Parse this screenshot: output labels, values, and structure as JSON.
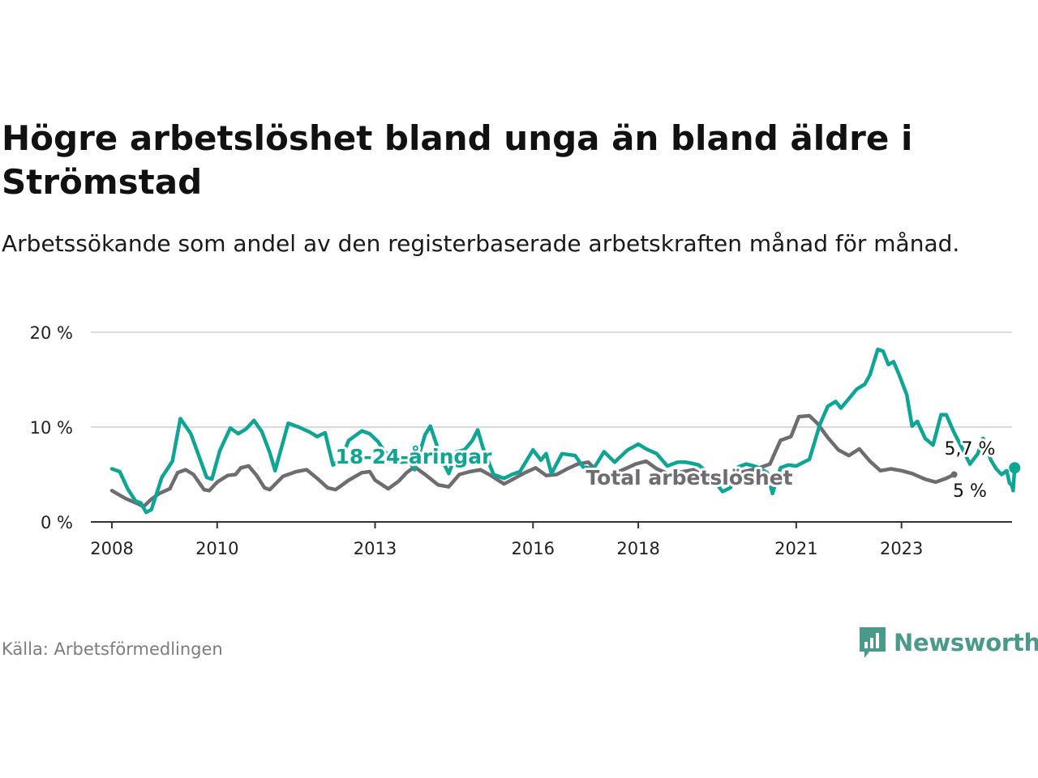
{
  "title": "Högre arbetslöshet bland unga än bland äldre i Strömstad",
  "subtitle": "Arbetssökande som andel av den registerbaserade arbetskraften månad för månad.",
  "source": "Källa: Arbetsförmedlingen",
  "brand": "Newsworthy",
  "colors": {
    "youth": "#0ea595",
    "total": "#6f6b72",
    "grid": "#dcdcdc",
    "axis": "#333333",
    "brand": "#4a9a8c"
  },
  "chart_data": {
    "type": "line",
    "title": "Högre arbetslöshet bland unga än bland äldre i Strömstad",
    "ylim": [
      0,
      20
    ],
    "xlim": [
      2007.6,
      2025.1
    ],
    "y_ticks": [
      {
        "value": 0,
        "label": "0 %"
      },
      {
        "value": 10,
        "label": "10 %"
      },
      {
        "value": 20,
        "label": "20 %"
      }
    ],
    "x_ticks": [
      {
        "value": 2008,
        "label": "2008"
      },
      {
        "value": 2010,
        "label": "2010"
      },
      {
        "value": 2013,
        "label": "2013"
      },
      {
        "value": 2016,
        "label": "2016"
      },
      {
        "value": 2018,
        "label": "2018"
      },
      {
        "value": 2021,
        "label": "2021"
      },
      {
        "value": 2023,
        "label": "2023"
      }
    ],
    "series": [
      {
        "name": "Total arbetslöshet",
        "label": "Total arbetslöshet",
        "end_label": "5 %",
        "points": [
          [
            2008.0,
            3.3
          ],
          [
            2008.25,
            2.5
          ],
          [
            2008.5,
            1.9
          ],
          [
            2008.6,
            1.6
          ],
          [
            2008.75,
            2.4
          ],
          [
            2008.9,
            3.0
          ],
          [
            2009.1,
            3.5
          ],
          [
            2009.25,
            5.2
          ],
          [
            2009.4,
            5.5
          ],
          [
            2009.55,
            5.0
          ],
          [
            2009.75,
            3.4
          ],
          [
            2009.85,
            3.3
          ],
          [
            2010.0,
            4.2
          ],
          [
            2010.2,
            4.9
          ],
          [
            2010.35,
            5.0
          ],
          [
            2010.45,
            5.7
          ],
          [
            2010.6,
            5.9
          ],
          [
            2010.75,
            4.9
          ],
          [
            2010.9,
            3.6
          ],
          [
            2011.0,
            3.4
          ],
          [
            2011.25,
            4.8
          ],
          [
            2011.5,
            5.3
          ],
          [
            2011.7,
            5.5
          ],
          [
            2011.9,
            4.6
          ],
          [
            2012.1,
            3.6
          ],
          [
            2012.25,
            3.4
          ],
          [
            2012.5,
            4.4
          ],
          [
            2012.75,
            5.2
          ],
          [
            2012.9,
            5.3
          ],
          [
            2013.0,
            4.4
          ],
          [
            2013.25,
            3.5
          ],
          [
            2013.45,
            4.3
          ],
          [
            2013.6,
            5.2
          ],
          [
            2013.75,
            5.8
          ],
          [
            2013.95,
            5.0
          ],
          [
            2014.2,
            3.9
          ],
          [
            2014.4,
            3.7
          ],
          [
            2014.6,
            5.0
          ],
          [
            2014.8,
            5.3
          ],
          [
            2015.0,
            5.5
          ],
          [
            2015.2,
            4.9
          ],
          [
            2015.45,
            4.0
          ],
          [
            2015.65,
            4.6
          ],
          [
            2015.85,
            5.2
          ],
          [
            2016.05,
            5.7
          ],
          [
            2016.25,
            4.9
          ],
          [
            2016.45,
            5.0
          ],
          [
            2016.65,
            5.6
          ],
          [
            2016.85,
            6.1
          ],
          [
            2017.05,
            6.3
          ],
          [
            2017.25,
            5.2
          ],
          [
            2017.5,
            5.0
          ],
          [
            2017.75,
            5.6
          ],
          [
            2017.95,
            6.1
          ],
          [
            2018.15,
            6.4
          ],
          [
            2018.35,
            5.6
          ],
          [
            2018.6,
            5.0
          ],
          [
            2018.85,
            5.3
          ],
          [
            2019.05,
            5.5
          ],
          [
            2019.3,
            4.6
          ],
          [
            2019.55,
            4.5
          ],
          [
            2019.8,
            5.0
          ],
          [
            2020.0,
            5.3
          ],
          [
            2020.25,
            5.6
          ],
          [
            2020.5,
            6.1
          ],
          [
            2020.7,
            8.6
          ],
          [
            2020.9,
            9.0
          ],
          [
            2021.05,
            11.1
          ],
          [
            2021.25,
            11.2
          ],
          [
            2021.4,
            10.4
          ],
          [
            2021.6,
            8.9
          ],
          [
            2021.8,
            7.6
          ],
          [
            2022.0,
            7.0
          ],
          [
            2022.2,
            7.7
          ],
          [
            2022.4,
            6.4
          ],
          [
            2022.6,
            5.4
          ],
          [
            2022.8,
            5.6
          ],
          [
            2023.0,
            5.4
          ],
          [
            2023.2,
            5.1
          ],
          [
            2023.45,
            4.5
          ],
          [
            2023.65,
            4.2
          ],
          [
            2023.85,
            4.6
          ],
          [
            2024.0,
            5.0
          ]
        ]
      },
      {
        "name": "18-24-åringar",
        "label": "18-24-åringar",
        "end_label": "5,7 %",
        "points": [
          [
            2008.0,
            5.6
          ],
          [
            2008.15,
            5.3
          ],
          [
            2008.3,
            3.5
          ],
          [
            2008.45,
            2.2
          ],
          [
            2008.55,
            2.0
          ],
          [
            2008.65,
            1.0
          ],
          [
            2008.75,
            1.3
          ],
          [
            2008.95,
            4.7
          ],
          [
            2009.15,
            6.4
          ],
          [
            2009.3,
            10.9
          ],
          [
            2009.5,
            9.3
          ],
          [
            2009.65,
            7.0
          ],
          [
            2009.8,
            4.7
          ],
          [
            2009.9,
            4.5
          ],
          [
            2010.05,
            7.5
          ],
          [
            2010.25,
            9.9
          ],
          [
            2010.4,
            9.3
          ],
          [
            2010.55,
            9.8
          ],
          [
            2010.7,
            10.7
          ],
          [
            2010.85,
            9.5
          ],
          [
            2011.0,
            7.3
          ],
          [
            2011.1,
            5.4
          ],
          [
            2011.35,
            10.4
          ],
          [
            2011.55,
            10.0
          ],
          [
            2011.75,
            9.5
          ],
          [
            2011.9,
            9.0
          ],
          [
            2012.05,
            9.4
          ],
          [
            2012.2,
            6.0
          ],
          [
            2012.35,
            6.6
          ],
          [
            2012.5,
            8.6
          ],
          [
            2012.75,
            9.6
          ],
          [
            2012.9,
            9.3
          ],
          [
            2013.05,
            8.5
          ],
          [
            2013.2,
            7.3
          ],
          [
            2013.35,
            7.0
          ],
          [
            2013.5,
            6.3
          ],
          [
            2013.65,
            6.4
          ],
          [
            2013.75,
            5.5
          ],
          [
            2013.95,
            9.2
          ],
          [
            2014.05,
            10.1
          ],
          [
            2014.25,
            6.8
          ],
          [
            2014.4,
            5.1
          ],
          [
            2014.55,
            7.4
          ],
          [
            2014.7,
            7.6
          ],
          [
            2014.85,
            8.6
          ],
          [
            2014.95,
            9.7
          ],
          [
            2015.05,
            7.8
          ],
          [
            2015.25,
            5.0
          ],
          [
            2015.45,
            4.6
          ],
          [
            2015.6,
            5.0
          ],
          [
            2015.75,
            5.3
          ],
          [
            2016.0,
            7.6
          ],
          [
            2016.15,
            6.5
          ],
          [
            2016.25,
            7.2
          ],
          [
            2016.35,
            5.1
          ],
          [
            2016.55,
            7.2
          ],
          [
            2016.8,
            7.0
          ],
          [
            2016.95,
            5.8
          ],
          [
            2017.15,
            5.6
          ],
          [
            2017.35,
            7.4
          ],
          [
            2017.55,
            6.3
          ],
          [
            2017.8,
            7.6
          ],
          [
            2018.0,
            8.2
          ],
          [
            2018.15,
            7.7
          ],
          [
            2018.35,
            7.2
          ],
          [
            2018.55,
            5.9
          ],
          [
            2018.75,
            6.3
          ],
          [
            2018.9,
            6.3
          ],
          [
            2019.0,
            6.2
          ],
          [
            2019.15,
            6.0
          ],
          [
            2019.35,
            5.0
          ],
          [
            2019.6,
            3.2
          ],
          [
            2019.75,
            3.6
          ],
          [
            2019.9,
            5.8
          ],
          [
            2020.05,
            6.1
          ],
          [
            2020.25,
            5.8
          ],
          [
            2020.45,
            5.2
          ],
          [
            2020.55,
            3.0
          ],
          [
            2020.7,
            5.7
          ],
          [
            2020.85,
            6.0
          ],
          [
            2021.0,
            5.9
          ],
          [
            2021.25,
            6.6
          ],
          [
            2021.45,
            10.3
          ],
          [
            2021.6,
            12.2
          ],
          [
            2021.75,
            12.7
          ],
          [
            2021.85,
            12.0
          ],
          [
            2022.0,
            13.0
          ],
          [
            2022.15,
            14.0
          ],
          [
            2022.3,
            14.5
          ],
          [
            2022.4,
            15.5
          ],
          [
            2022.55,
            18.2
          ],
          [
            2022.65,
            18.0
          ],
          [
            2022.75,
            16.6
          ],
          [
            2022.85,
            16.9
          ],
          [
            2022.95,
            15.6
          ],
          [
            2023.1,
            13.4
          ],
          [
            2023.2,
            10.1
          ],
          [
            2023.3,
            10.6
          ],
          [
            2023.45,
            8.8
          ],
          [
            2023.6,
            8.1
          ],
          [
            2023.75,
            11.3
          ],
          [
            2023.85,
            11.3
          ],
          [
            2024.0,
            9.4
          ],
          [
            2024.15,
            7.8
          ],
          [
            2024.3,
            6.1
          ],
          [
            2024.45,
            7.2
          ],
          [
            2024.55,
            8.8
          ],
          [
            2024.7,
            6.5
          ],
          [
            2024.8,
            5.6
          ],
          [
            2024.9,
            5.0
          ],
          [
            2025.0,
            5.4
          ],
          [
            2025.05,
            4.1
          ],
          [
            2025.1,
            3.8
          ],
          [
            2025.12,
            3.3
          ],
          [
            2025.15,
            5.7
          ]
        ]
      }
    ]
  }
}
